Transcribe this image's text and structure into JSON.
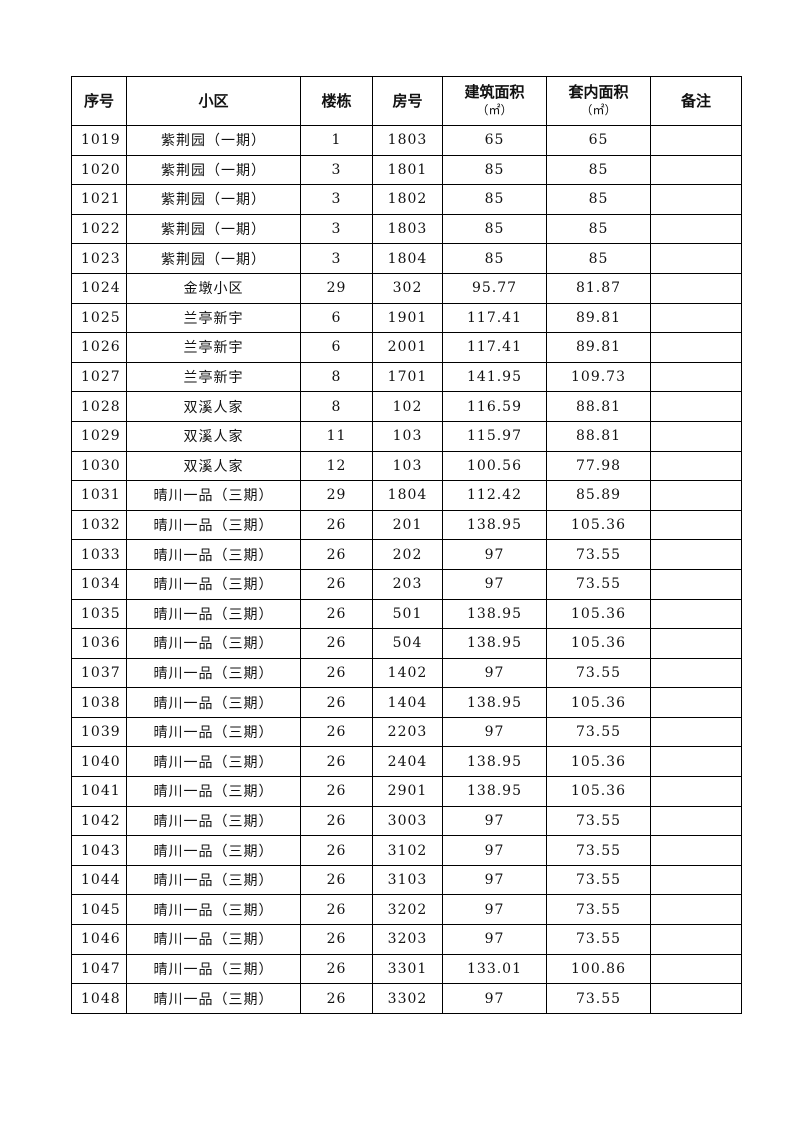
{
  "table": {
    "headers": [
      {
        "label": "序号",
        "unit": ""
      },
      {
        "label": "小区",
        "unit": ""
      },
      {
        "label": "楼栋",
        "unit": ""
      },
      {
        "label": "房号",
        "unit": ""
      },
      {
        "label": "建筑面积",
        "unit": "（㎡）"
      },
      {
        "label": "套内面积",
        "unit": "（㎡）"
      },
      {
        "label": "备注",
        "unit": ""
      }
    ],
    "rows": [
      [
        "1019",
        "紫荆园（一期）",
        "1",
        "1803",
        "65",
        "65",
        ""
      ],
      [
        "1020",
        "紫荆园（一期）",
        "3",
        "1801",
        "85",
        "85",
        ""
      ],
      [
        "1021",
        "紫荆园（一期）",
        "3",
        "1802",
        "85",
        "85",
        ""
      ],
      [
        "1022",
        "紫荆园（一期）",
        "3",
        "1803",
        "85",
        "85",
        ""
      ],
      [
        "1023",
        "紫荆园（一期）",
        "3",
        "1804",
        "85",
        "85",
        ""
      ],
      [
        "1024",
        "金墩小区",
        "29",
        "302",
        "95.77",
        "81.87",
        ""
      ],
      [
        "1025",
        "兰亭新宇",
        "6",
        "1901",
        "117.41",
        "89.81",
        ""
      ],
      [
        "1026",
        "兰亭新宇",
        "6",
        "2001",
        "117.41",
        "89.81",
        ""
      ],
      [
        "1027",
        "兰亭新宇",
        "8",
        "1701",
        "141.95",
        "109.73",
        ""
      ],
      [
        "1028",
        "双溪人家",
        "8",
        "102",
        "116.59",
        "88.81",
        ""
      ],
      [
        "1029",
        "双溪人家",
        "11",
        "103",
        "115.97",
        "88.81",
        ""
      ],
      [
        "1030",
        "双溪人家",
        "12",
        "103",
        "100.56",
        "77.98",
        ""
      ],
      [
        "1031",
        "晴川一品（三期）",
        "29",
        "1804",
        "112.42",
        "85.89",
        ""
      ],
      [
        "1032",
        "晴川一品（三期）",
        "26",
        "201",
        "138.95",
        "105.36",
        ""
      ],
      [
        "1033",
        "晴川一品（三期）",
        "26",
        "202",
        "97",
        "73.55",
        ""
      ],
      [
        "1034",
        "晴川一品（三期）",
        "26",
        "203",
        "97",
        "73.55",
        ""
      ],
      [
        "1035",
        "晴川一品（三期）",
        "26",
        "501",
        "138.95",
        "105.36",
        ""
      ],
      [
        "1036",
        "晴川一品（三期）",
        "26",
        "504",
        "138.95",
        "105.36",
        ""
      ],
      [
        "1037",
        "晴川一品（三期）",
        "26",
        "1402",
        "97",
        "73.55",
        ""
      ],
      [
        "1038",
        "晴川一品（三期）",
        "26",
        "1404",
        "138.95",
        "105.36",
        ""
      ],
      [
        "1039",
        "晴川一品（三期）",
        "26",
        "2203",
        "97",
        "73.55",
        ""
      ],
      [
        "1040",
        "晴川一品（三期）",
        "26",
        "2404",
        "138.95",
        "105.36",
        ""
      ],
      [
        "1041",
        "晴川一品（三期）",
        "26",
        "2901",
        "138.95",
        "105.36",
        ""
      ],
      [
        "1042",
        "晴川一品（三期）",
        "26",
        "3003",
        "97",
        "73.55",
        ""
      ],
      [
        "1043",
        "晴川一品（三期）",
        "26",
        "3102",
        "97",
        "73.55",
        ""
      ],
      [
        "1044",
        "晴川一品（三期）",
        "26",
        "3103",
        "97",
        "73.55",
        ""
      ],
      [
        "1045",
        "晴川一品（三期）",
        "26",
        "3202",
        "97",
        "73.55",
        ""
      ],
      [
        "1046",
        "晴川一品（三期）",
        "26",
        "3203",
        "97",
        "73.55",
        ""
      ],
      [
        "1047",
        "晴川一品（三期）",
        "26",
        "3301",
        "133.01",
        "100.86",
        ""
      ],
      [
        "1048",
        "晴川一品（三期）",
        "26",
        "3302",
        "97",
        "73.55",
        ""
      ]
    ]
  }
}
